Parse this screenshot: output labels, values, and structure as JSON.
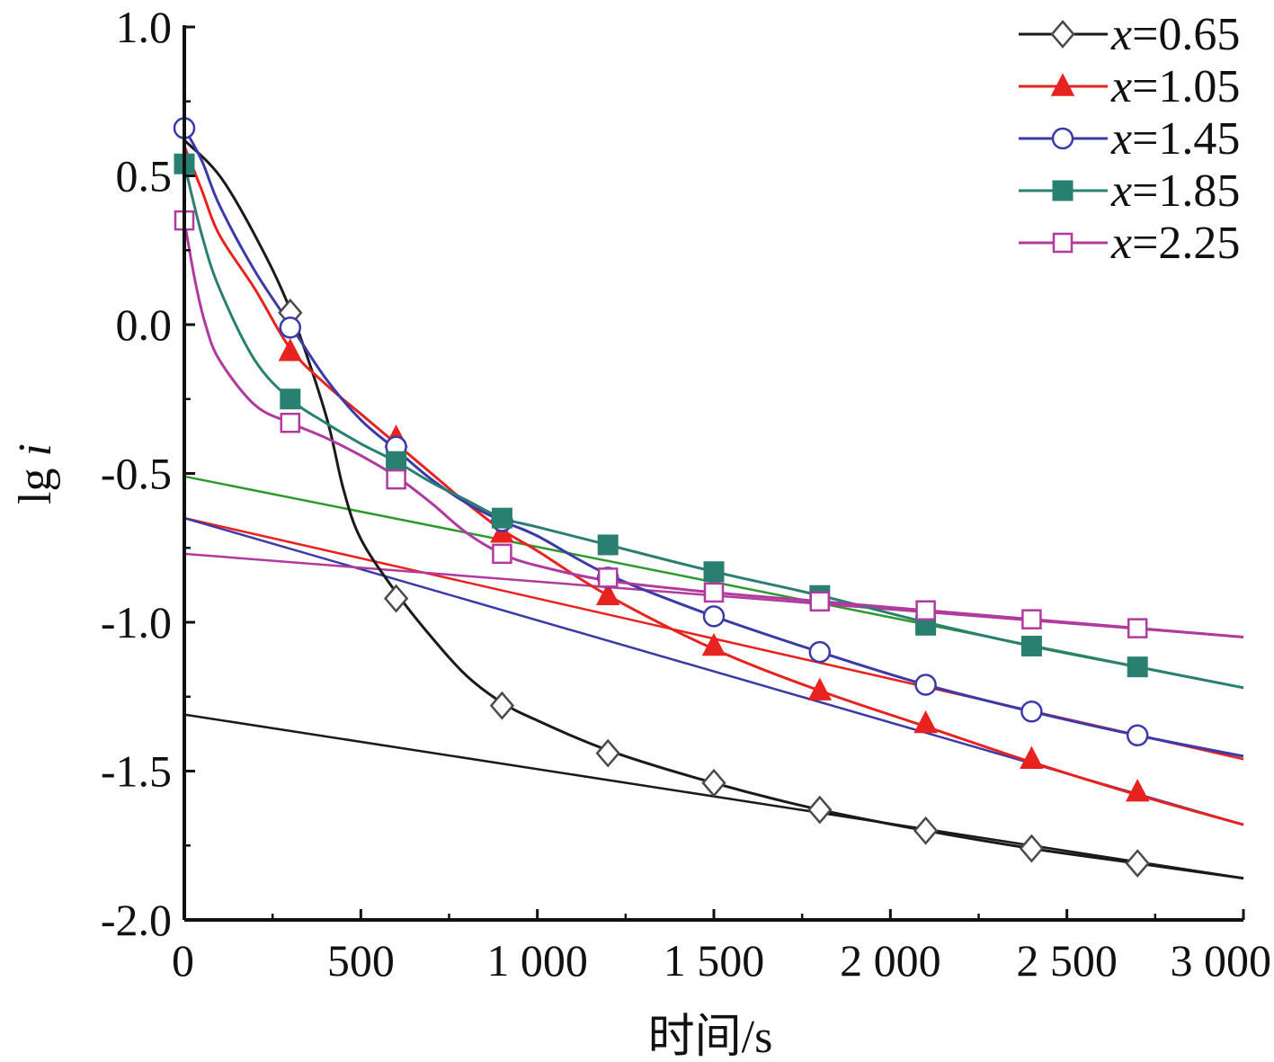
{
  "chart_data": {
    "type": "line",
    "xlabel": "时间/s",
    "ylabel_parts": [
      "lg ",
      "i"
    ],
    "xlim": [
      0,
      3000
    ],
    "ylim": [
      -2.0,
      1.0
    ],
    "x_ticks": [
      0,
      500,
      1000,
      1500,
      2000,
      2500,
      3000
    ],
    "x_tick_labels": [
      "0",
      "500",
      "1 000",
      "1 500",
      "2 000",
      "2 500",
      "3 000"
    ],
    "y_ticks": [
      1.0,
      0.5,
      0.0,
      -0.5,
      -1.0,
      -1.5,
      -2.0
    ],
    "y_tick_labels": [
      "1.0",
      "0.5",
      "0.0",
      "-0.5",
      "-1.0",
      "-1.5",
      "-2.0"
    ],
    "grid": false,
    "legend_position": "top-right",
    "series": [
      {
        "name_var": "x",
        "name_value": "=0.65",
        "color": "#1a1a1a",
        "marker": "diamond-open",
        "curve": [
          [
            0,
            0.62
          ],
          [
            100,
            0.5
          ],
          [
            200,
            0.3
          ],
          [
            300,
            0.05
          ],
          [
            400,
            -0.3
          ],
          [
            450,
            -0.55
          ],
          [
            500,
            -0.72
          ],
          [
            600,
            -0.9
          ],
          [
            700,
            -1.05
          ],
          [
            800,
            -1.18
          ],
          [
            900,
            -1.27
          ],
          [
            1000,
            -1.33
          ],
          [
            1200,
            -1.43
          ],
          [
            1500,
            -1.54
          ],
          [
            1800,
            -1.63
          ],
          [
            2100,
            -1.7
          ],
          [
            2400,
            -1.76
          ],
          [
            2700,
            -1.81
          ],
          [
            3000,
            -1.86
          ]
        ],
        "markers": [
          [
            300,
            0.04
          ],
          [
            600,
            -0.92
          ],
          [
            900,
            -1.28
          ],
          [
            1200,
            -1.44
          ],
          [
            1500,
            -1.54
          ],
          [
            1800,
            -1.63
          ],
          [
            2100,
            -1.7
          ],
          [
            2400,
            -1.76
          ],
          [
            2700,
            -1.81
          ]
        ],
        "fit": [
          [
            0,
            -1.31
          ],
          [
            3000,
            -1.86
          ]
        ]
      },
      {
        "name_var": "x",
        "name_value": "=1.05",
        "color": "#e8231f",
        "marker": "triangle-filled",
        "curve": [
          [
            0,
            0.6
          ],
          [
            50,
            0.45
          ],
          [
            100,
            0.3
          ],
          [
            200,
            0.12
          ],
          [
            300,
            -0.08
          ],
          [
            400,
            -0.2
          ],
          [
            500,
            -0.3
          ],
          [
            600,
            -0.4
          ],
          [
            700,
            -0.5
          ],
          [
            800,
            -0.6
          ],
          [
            900,
            -0.69
          ],
          [
            1000,
            -0.76
          ],
          [
            1200,
            -0.91
          ],
          [
            1500,
            -1.09
          ],
          [
            1800,
            -1.23
          ],
          [
            2100,
            -1.35
          ],
          [
            2400,
            -1.47
          ],
          [
            2700,
            -1.58
          ],
          [
            3000,
            -1.68
          ]
        ],
        "markers": [
          [
            300,
            -0.09
          ],
          [
            600,
            -0.38
          ],
          [
            900,
            -0.7
          ],
          [
            1200,
            -0.91
          ],
          [
            1500,
            -1.08
          ],
          [
            1800,
            -1.23
          ],
          [
            2100,
            -1.34
          ],
          [
            2400,
            -1.46
          ],
          [
            2700,
            -1.57
          ]
        ],
        "fit": [
          [
            0,
            -0.65
          ],
          [
            3000,
            -1.46
          ]
        ]
      },
      {
        "name_var": "x",
        "name_value": "=1.45",
        "color": "#3b3aa8",
        "marker": "circle-open",
        "curve": [
          [
            0,
            0.66
          ],
          [
            50,
            0.55
          ],
          [
            100,
            0.4
          ],
          [
            200,
            0.18
          ],
          [
            300,
            0.0
          ],
          [
            400,
            -0.18
          ],
          [
            500,
            -0.32
          ],
          [
            600,
            -0.42
          ],
          [
            700,
            -0.52
          ],
          [
            800,
            -0.6
          ],
          [
            900,
            -0.66
          ],
          [
            1000,
            -0.71
          ],
          [
            1200,
            -0.84
          ],
          [
            1500,
            -0.98
          ],
          [
            1800,
            -1.1
          ],
          [
            2100,
            -1.21
          ],
          [
            2400,
            -1.3
          ],
          [
            2700,
            -1.38
          ],
          [
            3000,
            -1.45
          ]
        ],
        "markers": [
          [
            0,
            0.66
          ],
          [
            300,
            -0.01
          ],
          [
            600,
            -0.41
          ],
          [
            900,
            -0.66
          ],
          [
            1200,
            -0.85
          ],
          [
            1500,
            -0.98
          ],
          [
            1800,
            -1.1
          ],
          [
            2100,
            -1.21
          ],
          [
            2400,
            -1.3
          ],
          [
            2700,
            -1.38
          ]
        ],
        "fit": [
          [
            0,
            -0.65
          ],
          [
            3000,
            -1.68
          ]
        ]
      },
      {
        "name_var": "x",
        "name_value": "=1.85",
        "color": "#2a8070",
        "marker": "square-filled",
        "curve": [
          [
            0,
            0.54
          ],
          [
            50,
            0.3
          ],
          [
            100,
            0.12
          ],
          [
            200,
            -0.12
          ],
          [
            300,
            -0.25
          ],
          [
            400,
            -0.33
          ],
          [
            500,
            -0.4
          ],
          [
            600,
            -0.46
          ],
          [
            700,
            -0.53
          ],
          [
            800,
            -0.59
          ],
          [
            900,
            -0.65
          ],
          [
            1000,
            -0.68
          ],
          [
            1200,
            -0.74
          ],
          [
            1500,
            -0.83
          ],
          [
            1800,
            -0.91
          ],
          [
            2100,
            -1.0
          ],
          [
            2400,
            -1.08
          ],
          [
            2700,
            -1.15
          ],
          [
            3000,
            -1.22
          ]
        ],
        "markers": [
          [
            0,
            0.54
          ],
          [
            300,
            -0.25
          ],
          [
            600,
            -0.46
          ],
          [
            900,
            -0.65
          ],
          [
            1200,
            -0.74
          ],
          [
            1500,
            -0.83
          ],
          [
            1800,
            -0.91
          ],
          [
            2100,
            -1.01
          ],
          [
            2400,
            -1.08
          ],
          [
            2700,
            -1.15
          ]
        ],
        "fit": [
          [
            0,
            -0.51
          ],
          [
            3000,
            -1.22
          ]
        ]
      },
      {
        "name_var": "x",
        "name_value": "=2.25",
        "color": "#b03a9e",
        "marker": "square-open",
        "curve": [
          [
            0,
            0.35
          ],
          [
            30,
            0.15
          ],
          [
            60,
            0.0
          ],
          [
            100,
            -0.12
          ],
          [
            200,
            -0.27
          ],
          [
            300,
            -0.33
          ],
          [
            400,
            -0.38
          ],
          [
            500,
            -0.44
          ],
          [
            600,
            -0.51
          ],
          [
            700,
            -0.6
          ],
          [
            800,
            -0.7
          ],
          [
            900,
            -0.77
          ],
          [
            1000,
            -0.81
          ],
          [
            1200,
            -0.86
          ],
          [
            1500,
            -0.9
          ],
          [
            1800,
            -0.93
          ],
          [
            2100,
            -0.96
          ],
          [
            2400,
            -0.99
          ],
          [
            2700,
            -1.02
          ],
          [
            3000,
            -1.05
          ]
        ],
        "markers": [
          [
            0,
            0.35
          ],
          [
            300,
            -0.33
          ],
          [
            600,
            -0.52
          ],
          [
            900,
            -0.77
          ],
          [
            1200,
            -0.85
          ],
          [
            1500,
            -0.9
          ],
          [
            1800,
            -0.93
          ],
          [
            2100,
            -0.96
          ],
          [
            2400,
            -0.99
          ],
          [
            2700,
            -1.02
          ]
        ],
        "fit": [
          [
            0,
            -0.77
          ],
          [
            3000,
            -1.05
          ]
        ]
      }
    ]
  }
}
